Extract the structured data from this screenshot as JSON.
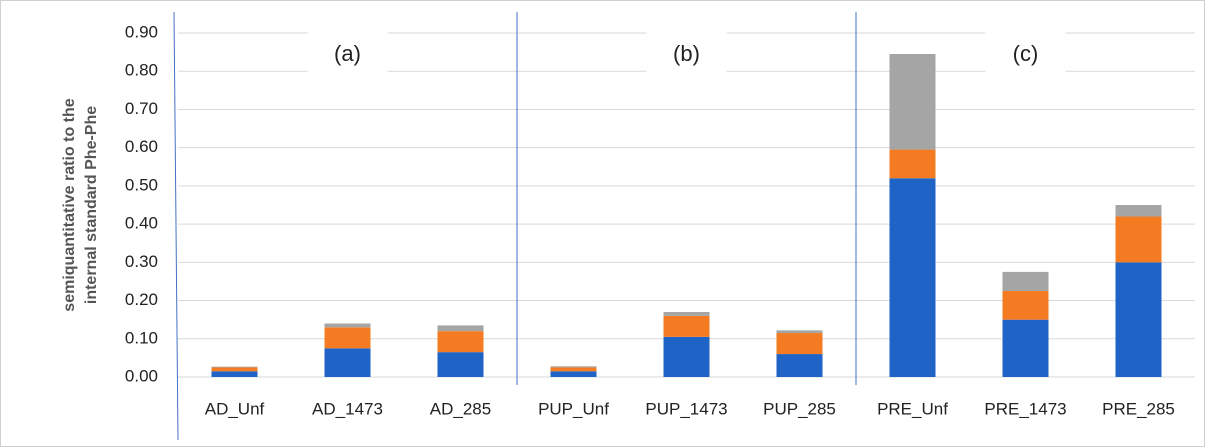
{
  "chart_data": {
    "type": "bar",
    "stacked": true,
    "ylabel": [
      "semiquantitative ratio to the",
      "internal standard Phe-Phe"
    ],
    "annotations": [
      "(a)",
      "(b)",
      "(c)"
    ],
    "categories": [
      "AD_Unf",
      "AD_1473",
      "AD_285",
      "PUP_Unf",
      "PUP_1473",
      "PUP_285",
      "PRE_Unf",
      "PRE_1473",
      "PRE_285"
    ],
    "series": [
      {
        "color": "#1f63c6",
        "values": [
          0.015,
          0.075,
          0.065,
          0.015,
          0.105,
          0.06,
          0.52,
          0.15,
          0.3
        ]
      },
      {
        "color": "#f47b22",
        "values": [
          0.01,
          0.055,
          0.055,
          0.01,
          0.055,
          0.055,
          0.075,
          0.075,
          0.12
        ]
      },
      {
        "color": "#a5a5a5",
        "values": [
          0.002,
          0.01,
          0.015,
          0.003,
          0.01,
          0.007,
          0.25,
          0.05,
          0.03
        ]
      }
    ],
    "ylim": [
      0,
      0.9
    ],
    "yticks": [
      {
        "value": 0,
        "label": "0.00"
      },
      {
        "value": 0.1,
        "label": "0.10"
      },
      {
        "value": 0.2,
        "label": "0.20"
      },
      {
        "value": 0.3,
        "label": "0.30"
      },
      {
        "value": 0.4,
        "label": "0.40"
      },
      {
        "value": 0.5,
        "label": "0.50"
      },
      {
        "value": 0.6,
        "label": "0.60"
      },
      {
        "value": 0.7,
        "label": "0.70"
      },
      {
        "value": 0.8,
        "label": "0.80"
      },
      {
        "value": 0.9,
        "label": "0.90"
      }
    ],
    "grid": true
  }
}
